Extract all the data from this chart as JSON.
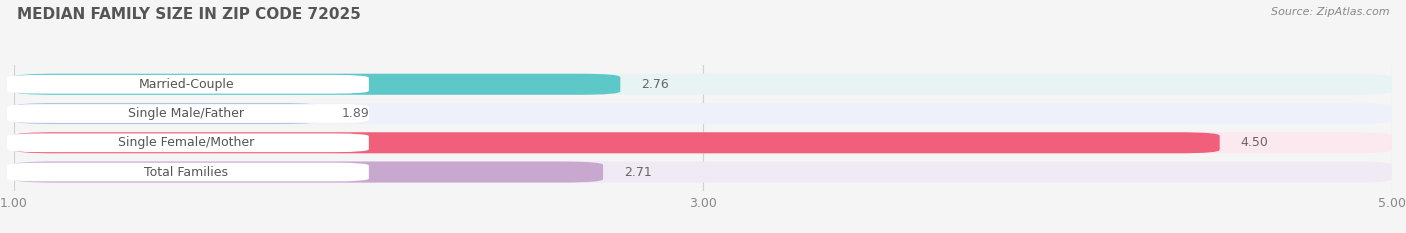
{
  "title": "MEDIAN FAMILY SIZE IN ZIP CODE 72025",
  "source": "Source: ZipAtlas.com",
  "categories": [
    "Married-Couple",
    "Single Male/Father",
    "Single Female/Mother",
    "Total Families"
  ],
  "values": [
    2.76,
    1.89,
    4.5,
    2.71
  ],
  "bar_colors": [
    "#5ec8c8",
    "#b0c4e8",
    "#f0607a",
    "#c9a8d0"
  ],
  "bar_bg_colors": [
    "#e8f4f4",
    "#eef1f9",
    "#fce8ef",
    "#f0eaf4"
  ],
  "label_border_colors": [
    "#5ec8c8",
    "#b0c4e8",
    "#f0607a",
    "#c9a8d0"
  ],
  "xlim": [
    1.0,
    5.0
  ],
  "xticks": [
    1.0,
    3.0,
    5.0
  ],
  "xtick_labels": [
    "1.00",
    "3.00",
    "5.00"
  ],
  "background_color": "#f5f5f5",
  "title_fontsize": 11,
  "label_fontsize": 9,
  "value_fontsize": 9,
  "source_fontsize": 8
}
